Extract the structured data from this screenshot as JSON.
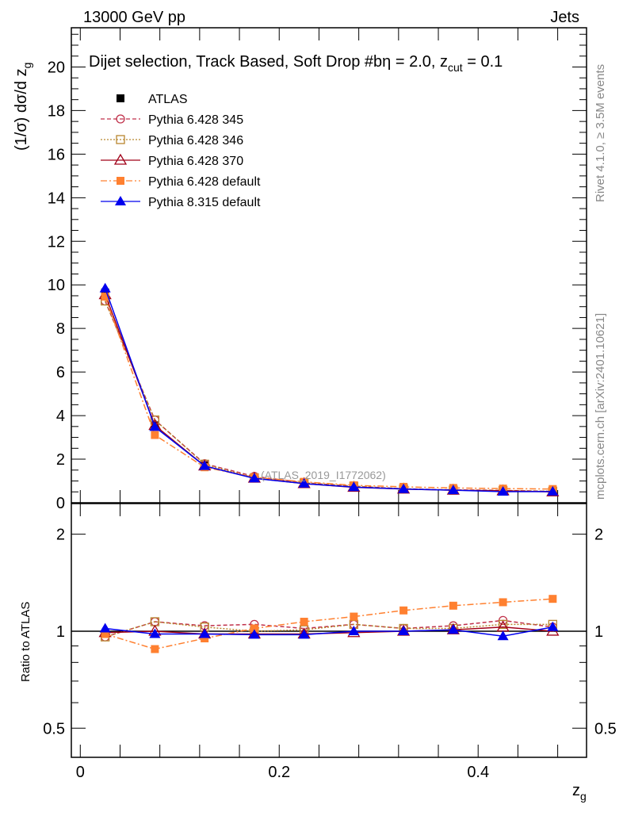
{
  "header": {
    "left": "13000 GeV pp",
    "right": "Jets"
  },
  "side_labels": {
    "rivet": "Rivet 4.1.0, ≥ 3.5M events",
    "mcplots": "mcplots.cern.ch [arXiv:2401.10621]"
  },
  "colors": {
    "atlas": "#000000",
    "p345": "#c0304a",
    "p346": "#b8862e",
    "p370": "#a00018",
    "p6def": "#ff8030",
    "p8def": "#0000ee"
  },
  "chart_data": [
    {
      "type": "line",
      "title": "Dijet selection, Track Based, Soft Drop #bη = 2.0, z",
      "title_sub": "cut",
      "title_tail": " = 0.1",
      "watermark": "(ATLAS_2019_I1772062)",
      "ylabel": "(1/σ) dσ/d z",
      "ylabel_sub": "g",
      "xlim": [
        -0.009,
        0.509
      ],
      "ylim": [
        0,
        21.8
      ],
      "yticks": [
        0,
        2,
        4,
        6,
        8,
        10,
        12,
        14,
        16,
        18,
        20
      ],
      "ytick_labels": [
        "0",
        "2",
        "4",
        "6",
        "8",
        "10",
        "12",
        "14",
        "16",
        "18",
        "20"
      ],
      "legend_position": "top-left",
      "x": [
        0.025,
        0.075,
        0.125,
        0.175,
        0.225,
        0.275,
        0.325,
        0.375,
        0.425,
        0.475
      ],
      "series": [
        {
          "name": "ATLAS",
          "key": "atlas",
          "values": [
            9.65,
            3.55,
            1.72,
            1.15,
            0.9,
            0.72,
            0.63,
            0.57,
            0.53,
            0.5
          ]
        },
        {
          "name": "Pythia 6.428 345",
          "key": "p345",
          "values": [
            9.26,
            3.8,
            1.79,
            1.21,
            0.92,
            0.76,
            0.64,
            0.59,
            0.57,
            0.52
          ]
        },
        {
          "name": "Pythia 6.428 346",
          "key": "p346",
          "values": [
            9.26,
            3.8,
            1.77,
            1.15,
            0.91,
            0.76,
            0.64,
            0.58,
            0.56,
            0.53
          ]
        },
        {
          "name": "Pythia 6.428 370",
          "key": "p370",
          "values": [
            9.55,
            3.55,
            1.69,
            1.13,
            0.88,
            0.71,
            0.63,
            0.58,
            0.55,
            0.5
          ]
        },
        {
          "name": "Pythia 6.428 default",
          "key": "p6def",
          "values": [
            9.46,
            3.11,
            1.63,
            1.17,
            0.96,
            0.8,
            0.73,
            0.68,
            0.65,
            0.63
          ]
        },
        {
          "name": "Pythia 8.315 default",
          "key": "p8def",
          "values": [
            9.84,
            3.48,
            1.69,
            1.12,
            0.88,
            0.72,
            0.63,
            0.58,
            0.51,
            0.515
          ]
        }
      ]
    },
    {
      "type": "line",
      "ylabel": "Ratio to ATLAS",
      "xlabel": "z",
      "xlabel_sub": "g",
      "yscale": "log",
      "xlim": [
        -0.009,
        0.509
      ],
      "ylim": [
        0.406,
        2.49
      ],
      "xticks": [
        0,
        0.2,
        0.4
      ],
      "xtick_labels": [
        "0",
        "0.2",
        "0.4"
      ],
      "yticks": [
        0.5,
        1,
        2
      ],
      "ytick_labels": [
        "0.5",
        "1",
        "2"
      ],
      "x": [
        0.025,
        0.075,
        0.125,
        0.175,
        0.225,
        0.275,
        0.325,
        0.375,
        0.425,
        0.475
      ],
      "series": [
        {
          "name": "Pythia 6.428 345",
          "key": "p345",
          "values": [
            0.96,
            1.07,
            1.04,
            1.05,
            1.02,
            1.05,
            1.02,
            1.04,
            1.08,
            1.03
          ]
        },
        {
          "name": "Pythia 6.428 346",
          "key": "p346",
          "values": [
            0.96,
            1.07,
            1.03,
            1.0,
            1.01,
            1.05,
            1.02,
            1.02,
            1.05,
            1.05
          ]
        },
        {
          "name": "Pythia 6.428 370",
          "key": "p370",
          "values": [
            0.99,
            1.0,
            0.98,
            0.98,
            0.98,
            0.99,
            1.0,
            1.01,
            1.03,
            1.0
          ]
        },
        {
          "name": "Pythia 6.428 default",
          "key": "p6def",
          "values": [
            0.98,
            0.88,
            0.95,
            1.02,
            1.07,
            1.11,
            1.16,
            1.2,
            1.23,
            1.26
          ]
        },
        {
          "name": "Pythia 8.315 default",
          "key": "p8def",
          "values": [
            1.02,
            0.98,
            0.98,
            0.975,
            0.975,
            1.0,
            1.0,
            1.01,
            0.965,
            1.03
          ]
        }
      ]
    }
  ]
}
